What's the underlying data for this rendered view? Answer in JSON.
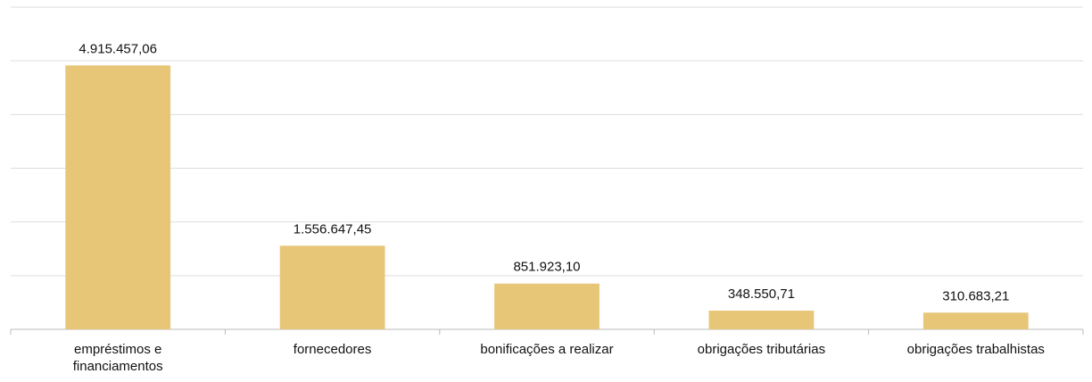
{
  "chart_data": {
    "type": "bar",
    "categories": [
      "empréstimos e\nfinanciamentos",
      "fornecedores",
      "bonificações a realizar",
      "obrigações tributárias",
      "obrigações trabalhistas"
    ],
    "values": [
      4915457.06,
      1556647.45,
      851923.1,
      348550.71,
      310683.21
    ],
    "value_labels": [
      "4.915.457,06",
      "1.556.647,45",
      "851.923,10",
      "348.550,71",
      "310.683,21"
    ],
    "color": "#e8c677",
    "ylim": [
      0,
      6000000
    ],
    "yticks": [
      0,
      1000000,
      2000000,
      3000000,
      4000000,
      5000000,
      6000000
    ],
    "grid": true
  }
}
